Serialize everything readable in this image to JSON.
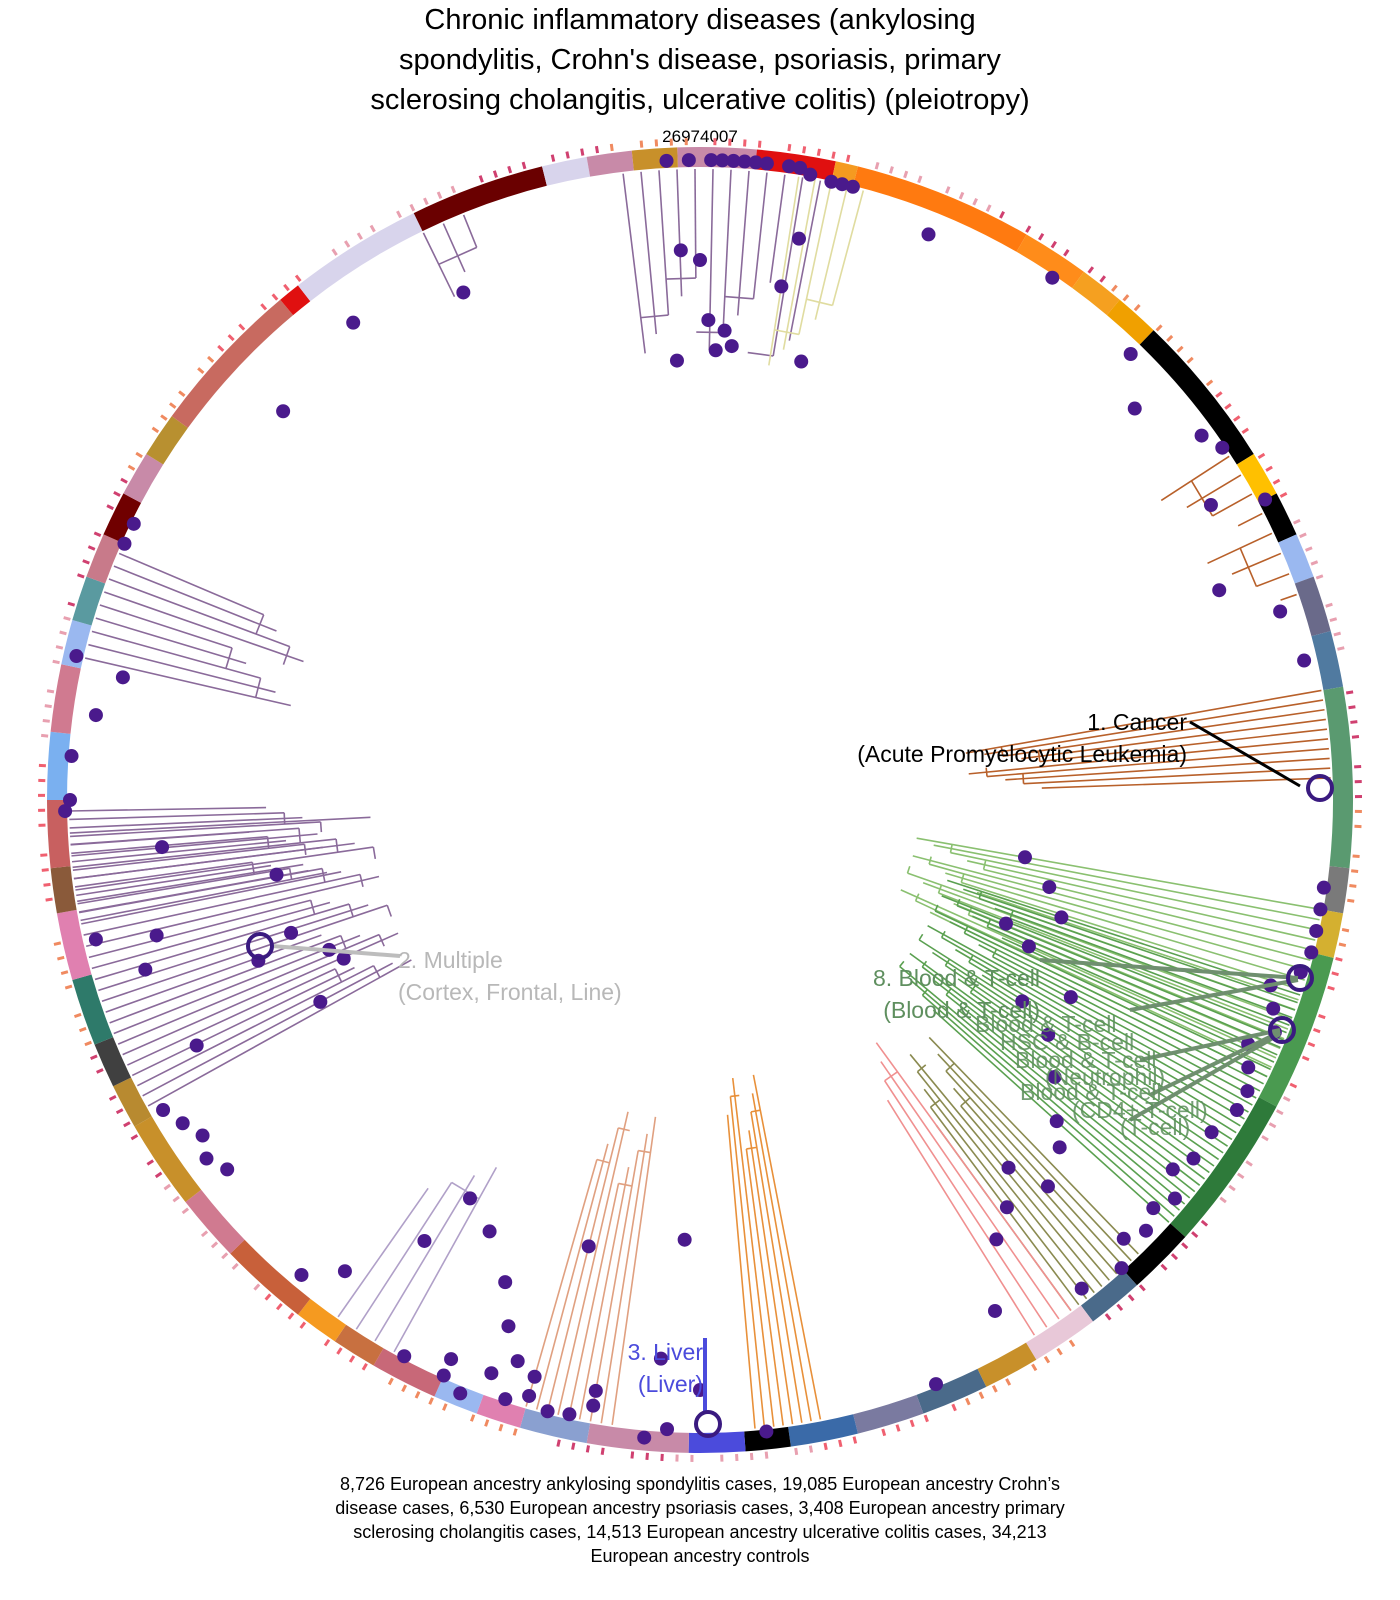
{
  "title": {
    "line1": "Chronic inflammatory diseases (ankylosing",
    "line2": "spondylitis, Crohn's disease, psoriasis, primary",
    "line3": "sclerosing cholangitis, ulcerative colitis) (pleiotropy)"
  },
  "pmid": "26974007",
  "labels": [
    {
      "name": "1. Cancer",
      "sub": "(Acute Promyelocytic Leukemia)",
      "color": "#000000"
    },
    {
      "name": "2. Multiple",
      "sub": "(Cortex, Frontal, Line)",
      "color": "#b8b8b8"
    },
    {
      "name": "3. Liver",
      "sub": "(Liver)",
      "color": "#4b4bdc"
    },
    {
      "name": "8. Blood & T-cell",
      "sub": "(Blood & T-cell)",
      "color": "#5f8f5f"
    }
  ],
  "overlapping_labels": [
    "Blood & T-cell",
    "HSC & B-cell",
    "Blood & T-cell",
    "(Neutrophil)",
    "Blood & T-cell",
    "(CD4+ T-cell)",
    "(T-cell)"
  ],
  "footer": {
    "line1": "8,726 European ancestry ankylosing spondylitis cases, 19,085 European ancestry Crohn’s",
    "line2": "disease cases, 6,530 European ancestry psoriasis cases, 3,408 European ancestry primary",
    "line3": "sclerosing cholangitis cases, 14,513 European ancestry ulcerative colitis cases, 34,213",
    "line4": "European ancestry controls"
  },
  "colors": {
    "point": "#4a1a8c",
    "branch_purple": "#8a6a9a",
    "branch_green": "#5aa050",
    "branch_orange": "#e8903a",
    "branch_olive": "#8a8a50",
    "branch_brown": "#b8602a"
  }
}
